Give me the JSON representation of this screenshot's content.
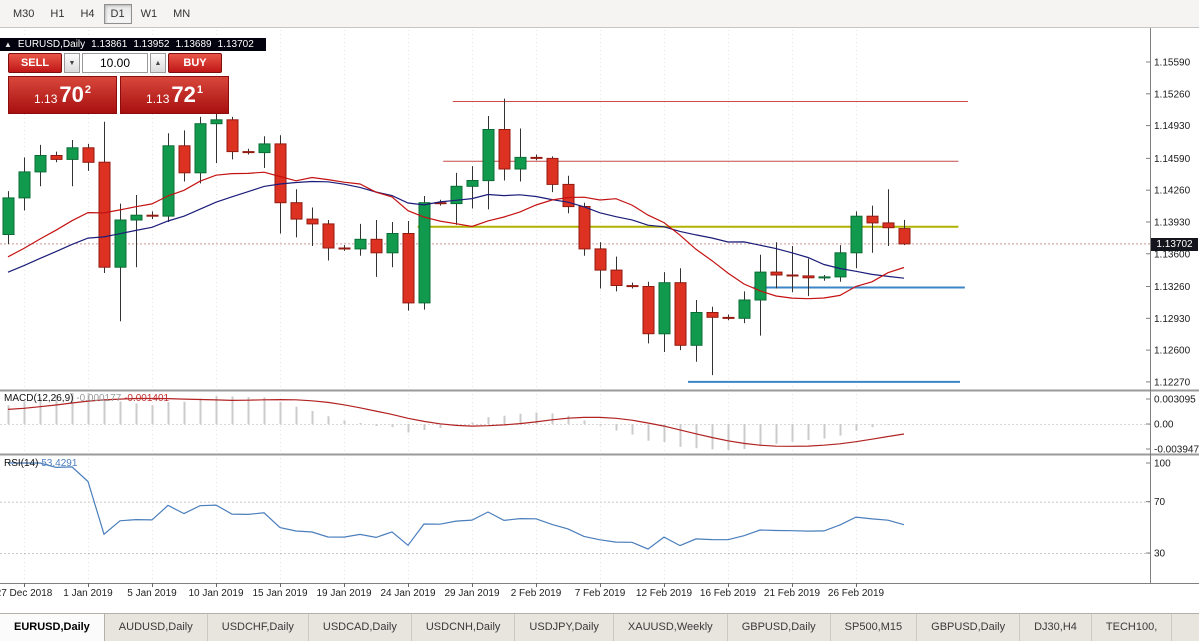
{
  "toolbar": {
    "timeframes": [
      "M30",
      "H1",
      "H4",
      "D1",
      "W1",
      "MN"
    ],
    "selected": "D1"
  },
  "chart": {
    "header": {
      "symbol": "EURUSD,Daily",
      "open": "1.13861",
      "high": "1.13952",
      "low": "1.13689",
      "close": "1.13702"
    }
  },
  "trade_panel": {
    "sell_label": "SELL",
    "buy_label": "BUY",
    "volume": "10.00",
    "decrease_icon": "▼",
    "increase_icon": "▲",
    "sell_price": {
      "figure": "1.13",
      "pips": "70",
      "point": "2"
    },
    "buy_price": {
      "figure": "1.13",
      "pips": "72",
      "point": "1"
    }
  },
  "price_scale": {
    "labels": [
      "1.15590",
      "1.15260",
      "1.14930",
      "1.14590",
      "1.14260",
      "1.13930",
      "1.13600",
      "1.13260",
      "1.12930",
      "1.12600",
      "1.12270"
    ],
    "current": "1.13702"
  },
  "macd_panel": {
    "label": "MACD(12,26,9)",
    "main_value": "-0.000177",
    "signal_value": "-0.001401",
    "scale": [
      "0.003095",
      "0.00",
      "-0.003947"
    ]
  },
  "rsi_panel": {
    "label": "RSI(14)",
    "value": "53.4291",
    "scale": [
      "100",
      "70",
      "30"
    ]
  },
  "date_axis": {
    "labels": [
      {
        "text": "27 Dec 2018",
        "bar": 1
      },
      {
        "text": "1 Jan 2019",
        "bar": 5
      },
      {
        "text": "5 Jan 2019",
        "bar": 9
      },
      {
        "text": "10 Jan 2019",
        "bar": 13
      },
      {
        "text": "15 Jan 2019",
        "bar": 17
      },
      {
        "text": "19 Jan 2019",
        "bar": 21
      },
      {
        "text": "24 Jan 2019",
        "bar": 25
      },
      {
        "text": "29 Jan 2019",
        "bar": 29
      },
      {
        "text": "2 Feb 2019",
        "bar": 33
      },
      {
        "text": "7 Feb 2019",
        "bar": 37
      },
      {
        "text": "12 Feb 2019",
        "bar": 41
      },
      {
        "text": "16 Feb 2019",
        "bar": 45
      },
      {
        "text": "21 Feb 2019",
        "bar": 49
      },
      {
        "text": "26 Feb 2019",
        "bar": 53
      }
    ]
  },
  "bottom_tabs": {
    "items": [
      {
        "label": "EURUSD,Daily",
        "active": true
      },
      {
        "label": "AUDUSD,Daily"
      },
      {
        "label": "USDCHF,Daily"
      },
      {
        "label": "USDCAD,Daily"
      },
      {
        "label": "USDCNH,Daily"
      },
      {
        "label": "USDJPY,Daily"
      },
      {
        "label": "XAUUSD,Weekly"
      },
      {
        "label": "GBPUSD,Daily"
      },
      {
        "label": "SP500,M15"
      },
      {
        "label": "GBPUSD,Daily"
      },
      {
        "label": "DJ30,H4"
      },
      {
        "label": "TECH100,"
      }
    ]
  },
  "chart_data": {
    "type": "candlestick",
    "symbol": "EURUSD",
    "timeframe": "Daily",
    "bid": 1.13702,
    "ylim": [
      1.122,
      1.1563
    ],
    "candles": [
      [
        "2018.12.26",
        1.138,
        1.1425,
        1.137,
        1.1418
      ],
      [
        "2018.12.27",
        1.1418,
        1.146,
        1.1405,
        1.1445
      ],
      [
        "2018.12.28",
        1.1445,
        1.1473,
        1.143,
        1.1462
      ],
      [
        "2018.12.29",
        1.1462,
        1.1466,
        1.1455,
        1.1458
      ],
      [
        "2018.12.31",
        1.1458,
        1.1478,
        1.143,
        1.147
      ],
      [
        "2019.01.01",
        1.147,
        1.1474,
        1.1446,
        1.1455
      ],
      [
        "2019.01.02",
        1.1455,
        1.1497,
        1.134,
        1.1346
      ],
      [
        "2019.01.03",
        1.1346,
        1.1412,
        1.129,
        1.1395
      ],
      [
        "2019.01.04",
        1.1395,
        1.1421,
        1.1346,
        1.14
      ],
      [
        "2019.01.05",
        1.14,
        1.1404,
        1.1396,
        1.1399
      ],
      [
        "2019.01.07",
        1.1399,
        1.1485,
        1.1393,
        1.1472
      ],
      [
        "2019.01.08",
        1.1472,
        1.1488,
        1.1435,
        1.1444
      ],
      [
        "2019.01.09",
        1.1444,
        1.1502,
        1.1433,
        1.1495
      ],
      [
        "2019.01.10",
        1.1495,
        1.1507,
        1.1454,
        1.1499
      ],
      [
        "2019.01.11",
        1.1499,
        1.1502,
        1.1458,
        1.1466
      ],
      [
        "2019.01.12",
        1.1466,
        1.1469,
        1.1463,
        1.1465
      ],
      [
        "2019.01.14",
        1.1465,
        1.1482,
        1.1449,
        1.1474
      ],
      [
        "2019.01.15",
        1.1474,
        1.1483,
        1.1381,
        1.1413
      ],
      [
        "2019.01.16",
        1.1413,
        1.1427,
        1.1377,
        1.1396
      ],
      [
        "2019.01.17",
        1.1396,
        1.1408,
        1.1368,
        1.1391
      ],
      [
        "2019.01.18",
        1.1391,
        1.1395,
        1.1353,
        1.1366
      ],
      [
        "2019.01.19",
        1.1366,
        1.1369,
        1.1363,
        1.1365
      ],
      [
        "2019.01.21",
        1.1365,
        1.1391,
        1.1358,
        1.1375
      ],
      [
        "2019.01.22",
        1.1375,
        1.1395,
        1.1336,
        1.1361
      ],
      [
        "2019.01.23",
        1.1361,
        1.1393,
        1.1346,
        1.1381
      ],
      [
        "2019.01.24",
        1.1381,
        1.1394,
        1.1301,
        1.1309
      ],
      [
        "2019.01.25",
        1.1309,
        1.142,
        1.1302,
        1.1413
      ],
      [
        "2019.01.26",
        1.1413,
        1.1416,
        1.141,
        1.1412
      ],
      [
        "2019.01.28",
        1.1412,
        1.1444,
        1.139,
        1.143
      ],
      [
        "2019.01.29",
        1.143,
        1.1451,
        1.1407,
        1.1436
      ],
      [
        "2019.01.30",
        1.1436,
        1.1503,
        1.1406,
        1.1489
      ],
      [
        "2019.01.31",
        1.1489,
        1.1521,
        1.1436,
        1.1448
      ],
      [
        "2019.02.01",
        1.1448,
        1.149,
        1.1435,
        1.146
      ],
      [
        "2019.02.02",
        1.146,
        1.1463,
        1.1457,
        1.1459
      ],
      [
        "2019.02.04",
        1.1459,
        1.1461,
        1.1424,
        1.1432
      ],
      [
        "2019.02.05",
        1.1432,
        1.1441,
        1.1402,
        1.1409
      ],
      [
        "2019.02.06",
        1.1409,
        1.1413,
        1.1358,
        1.1365
      ],
      [
        "2019.02.07",
        1.1365,
        1.1372,
        1.1324,
        1.1343
      ],
      [
        "2019.02.08",
        1.1343,
        1.1357,
        1.1321,
        1.1327
      ],
      [
        "2019.02.09",
        1.1327,
        1.133,
        1.1324,
        1.1326
      ],
      [
        "2019.02.11",
        1.1326,
        1.1331,
        1.1267,
        1.1277
      ],
      [
        "2019.02.12",
        1.1277,
        1.1341,
        1.1258,
        1.133
      ],
      [
        "2019.02.13",
        1.133,
        1.1345,
        1.126,
        1.1265
      ],
      [
        "2019.02.14",
        1.1265,
        1.1312,
        1.1248,
        1.1299
      ],
      [
        "2019.02.15",
        1.1299,
        1.1305,
        1.1234,
        1.1294
      ],
      [
        "2019.02.16",
        1.1294,
        1.1297,
        1.1291,
        1.1293
      ],
      [
        "2019.02.18",
        1.1293,
        1.1321,
        1.1288,
        1.1312
      ],
      [
        "2019.02.19",
        1.1312,
        1.1359,
        1.1275,
        1.1341
      ],
      [
        "2019.02.20",
        1.1341,
        1.1372,
        1.1324,
        1.1338
      ],
      [
        "2019.02.21",
        1.1338,
        1.1368,
        1.132,
        1.1337
      ],
      [
        "2019.02.22",
        1.1337,
        1.1355,
        1.1316,
        1.1335
      ],
      [
        "2019.02.23",
        1.1335,
        1.1338,
        1.1332,
        1.1336
      ],
      [
        "2019.02.25",
        1.1336,
        1.1369,
        1.1331,
        1.1361
      ],
      [
        "2019.02.26",
        1.1361,
        1.1404,
        1.1345,
        1.1399
      ],
      [
        "2019.02.27",
        1.1399,
        1.141,
        1.1361,
        1.1392
      ],
      [
        "2019.02.28",
        1.1392,
        1.1427,
        1.1368,
        1.1387
      ],
      [
        "2019.03.01",
        1.13861,
        1.13952,
        1.13689,
        1.13702
      ]
    ],
    "ma_fast": {
      "period": 13,
      "color": "#c41212"
    },
    "ma_slow": {
      "period": 21,
      "color": "#1c1c7a"
    },
    "hlines": [
      {
        "price": 1.1518,
        "bar1": 27.8,
        "bar2": 60.0,
        "color": "#d24a4a",
        "width": 1
      },
      {
        "price": 1.1456,
        "bar1": 27.2,
        "bar2": 59.4,
        "color": "#c64a4a",
        "width": 1
      },
      {
        "price": 1.1388,
        "bar1": 25.6,
        "bar2": 59.4,
        "color": "#b1b100",
        "width": 2
      },
      {
        "price": 1.1325,
        "bar1": 46.6,
        "bar2": 59.8,
        "color": "#3d86c6",
        "width": 2
      },
      {
        "price": 1.1227,
        "bar1": 42.5,
        "bar2": 59.5,
        "color": "#3d86c6",
        "width": 2
      }
    ],
    "indicators": [
      {
        "name": "MACD",
        "params": [
          12,
          26,
          9
        ]
      },
      {
        "name": "RSI",
        "params": [
          14
        ]
      }
    ]
  }
}
